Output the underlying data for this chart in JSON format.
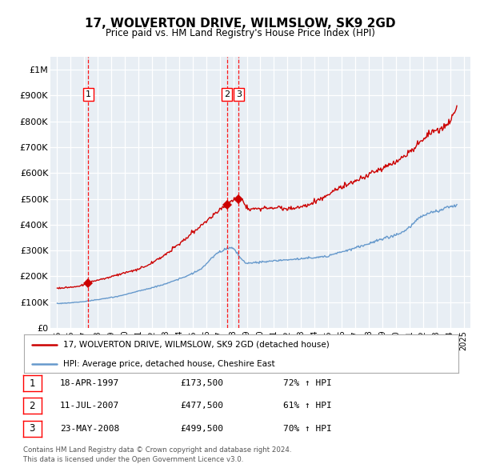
{
  "title": "17, WOLVERTON DRIVE, WILMSLOW, SK9 2GD",
  "subtitle": "Price paid vs. HM Land Registry's House Price Index (HPI)",
  "legend_line1": "17, WOLVERTON DRIVE, WILMSLOW, SK9 2GD (detached house)",
  "legend_line2": "HPI: Average price, detached house, Cheshire East",
  "footer1": "Contains HM Land Registry data © Crown copyright and database right 2024.",
  "footer2": "This data is licensed under the Open Government Licence v3.0.",
  "transactions": [
    {
      "label": "1",
      "date": "18-APR-1997",
      "price": 173500,
      "pct": "72%",
      "dir": "↑",
      "year_x": 1997.29
    },
    {
      "label": "2",
      "date": "11-JUL-2007",
      "price": 477500,
      "pct": "61%",
      "dir": "↑",
      "year_x": 2007.53
    },
    {
      "label": "3",
      "date": "23-MAY-2008",
      "price": 499500,
      "pct": "70%",
      "dir": "↑",
      "year_x": 2008.39
    }
  ],
  "red_color": "#cc0000",
  "blue_color": "#6699cc",
  "plot_bg": "#e8eef4",
  "grid_color": "#ffffff",
  "dashed_color": "#ff0000",
  "ylim": [
    0,
    1050000
  ],
  "yticks": [
    0,
    100000,
    200000,
    300000,
    400000,
    500000,
    600000,
    700000,
    800000,
    900000,
    1000000
  ],
  "ytick_labels": [
    "£0",
    "£100K",
    "£200K",
    "£300K",
    "£400K",
    "£500K",
    "£600K",
    "£700K",
    "£800K",
    "£900K",
    "£1M"
  ],
  "xlim_start": 1994.5,
  "xlim_end": 2025.5,
  "hpi_key_years": [
    1995.0,
    1996.5,
    1998.0,
    1999.5,
    2001.0,
    2002.5,
    2004.0,
    2005.5,
    2007.0,
    2007.8,
    2009.0,
    2010.0,
    2011.5,
    2013.0,
    2014.5,
    2016.0,
    2017.5,
    2019.0,
    2020.5,
    2022.0,
    2023.0,
    2024.5
  ],
  "hpi_key_vals": [
    95000,
    100000,
    110000,
    123000,
    143000,
    163000,
    190000,
    225000,
    295000,
    310000,
    252000,
    255000,
    262000,
    268000,
    275000,
    295000,
    318000,
    345000,
    370000,
    435000,
    452000,
    478000
  ],
  "red_key_years": [
    1995.0,
    1996.0,
    1997.0,
    1997.5,
    1998.5,
    1999.5,
    2001.0,
    2002.5,
    2004.0,
    2005.5,
    2006.5,
    2007.3,
    2007.8,
    2008.5,
    2009.2,
    2010.0,
    2011.0,
    2012.0,
    2013.0,
    2014.5,
    2016.0,
    2017.5,
    2019.0,
    2020.5,
    2021.5,
    2022.5,
    2023.5,
    2024.5
  ],
  "red_key_vals": [
    155000,
    158000,
    168000,
    178000,
    192000,
    207000,
    228000,
    268000,
    325000,
    390000,
    435000,
    470000,
    490000,
    500000,
    462000,
    462000,
    468000,
    462000,
    470000,
    500000,
    545000,
    578000,
    618000,
    660000,
    705000,
    755000,
    778000,
    848000
  ]
}
